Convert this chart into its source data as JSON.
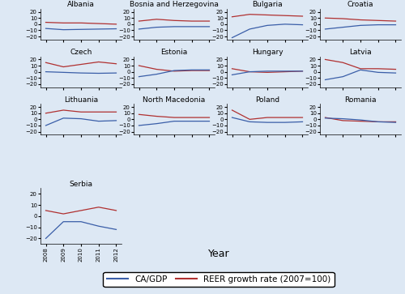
{
  "years": [
    2008,
    2009,
    2010,
    2011,
    2012
  ],
  "countries": [
    "Albania",
    "Bosnia and Herzegovina",
    "Bulgaria",
    "Croatia",
    "Czech",
    "Estonia",
    "Hungary",
    "Latvia",
    "Lithuania",
    "North Macedonia",
    "Poland",
    "Romania",
    "Serbia"
  ],
  "ca_gdp": {
    "Albania": [
      -7,
      -9,
      -8.5,
      -8,
      -7.5
    ],
    "Bosnia and Herzegovina": [
      -8,
      -5,
      -4,
      -4,
      -4
    ],
    "Bulgaria": [
      -22,
      -8,
      -2,
      0,
      -1
    ],
    "Croatia": [
      -8,
      -5,
      -2,
      -1,
      -1
    ],
    "Czech": [
      0,
      -1,
      -2,
      -2.5,
      -2
    ],
    "Estonia": [
      -8,
      -4,
      2,
      3,
      3
    ],
    "Hungary": [
      -5,
      0,
      1,
      1,
      1
    ],
    "Latvia": [
      -13,
      -8,
      3,
      -1,
      -2
    ],
    "Lithuania": [
      -10,
      2,
      1,
      -3,
      -2
    ],
    "North Macedonia": [
      -10,
      -7,
      -3,
      -3,
      -3
    ],
    "Poland": [
      3,
      -4,
      -5,
      -5,
      -4
    ],
    "Romania": [
      2,
      1,
      -1,
      -4,
      -5
    ],
    "Serbia": [
      -20,
      -5,
      -5,
      -9,
      -12
    ]
  },
  "reer": {
    "Albania": [
      3,
      2,
      2,
      1,
      0
    ],
    "Bosnia and Herzegovina": [
      5,
      8,
      6,
      5,
      5
    ],
    "Bulgaria": [
      12,
      16,
      15,
      14,
      13
    ],
    "Croatia": [
      10,
      9,
      7,
      6,
      5
    ],
    "Czech": [
      15,
      8,
      12,
      16,
      13
    ],
    "Estonia": [
      10,
      4,
      1,
      2,
      2
    ],
    "Hungary": [
      5,
      0,
      -1,
      0,
      1
    ],
    "Latvia": [
      20,
      15,
      5,
      5,
      4
    ],
    "Lithuania": [
      10,
      15,
      12,
      12,
      12
    ],
    "North Macedonia": [
      8,
      5,
      3,
      3,
      3
    ],
    "Poland": [
      15,
      0,
      3,
      3,
      3
    ],
    "Romania": [
      3,
      -2,
      -3,
      -4,
      -4
    ],
    "Serbia": [
      5,
      2,
      5,
      8,
      5
    ]
  },
  "ylim": [
    -25,
    25
  ],
  "yticks": [
    -20,
    -10,
    0,
    10,
    20
  ],
  "ca_color": "#3a5ea8",
  "reer_color": "#b03030",
  "subplot_bg": "#dde8f4",
  "fig_bg": "#dde8f4",
  "title_fontsize": 6.5,
  "tick_fontsize": 5.0,
  "legend_fontsize": 7.5,
  "xlabel": "Year",
  "legend_labels": [
    "CA/GDP",
    "REER growth rate (2007=100)"
  ]
}
